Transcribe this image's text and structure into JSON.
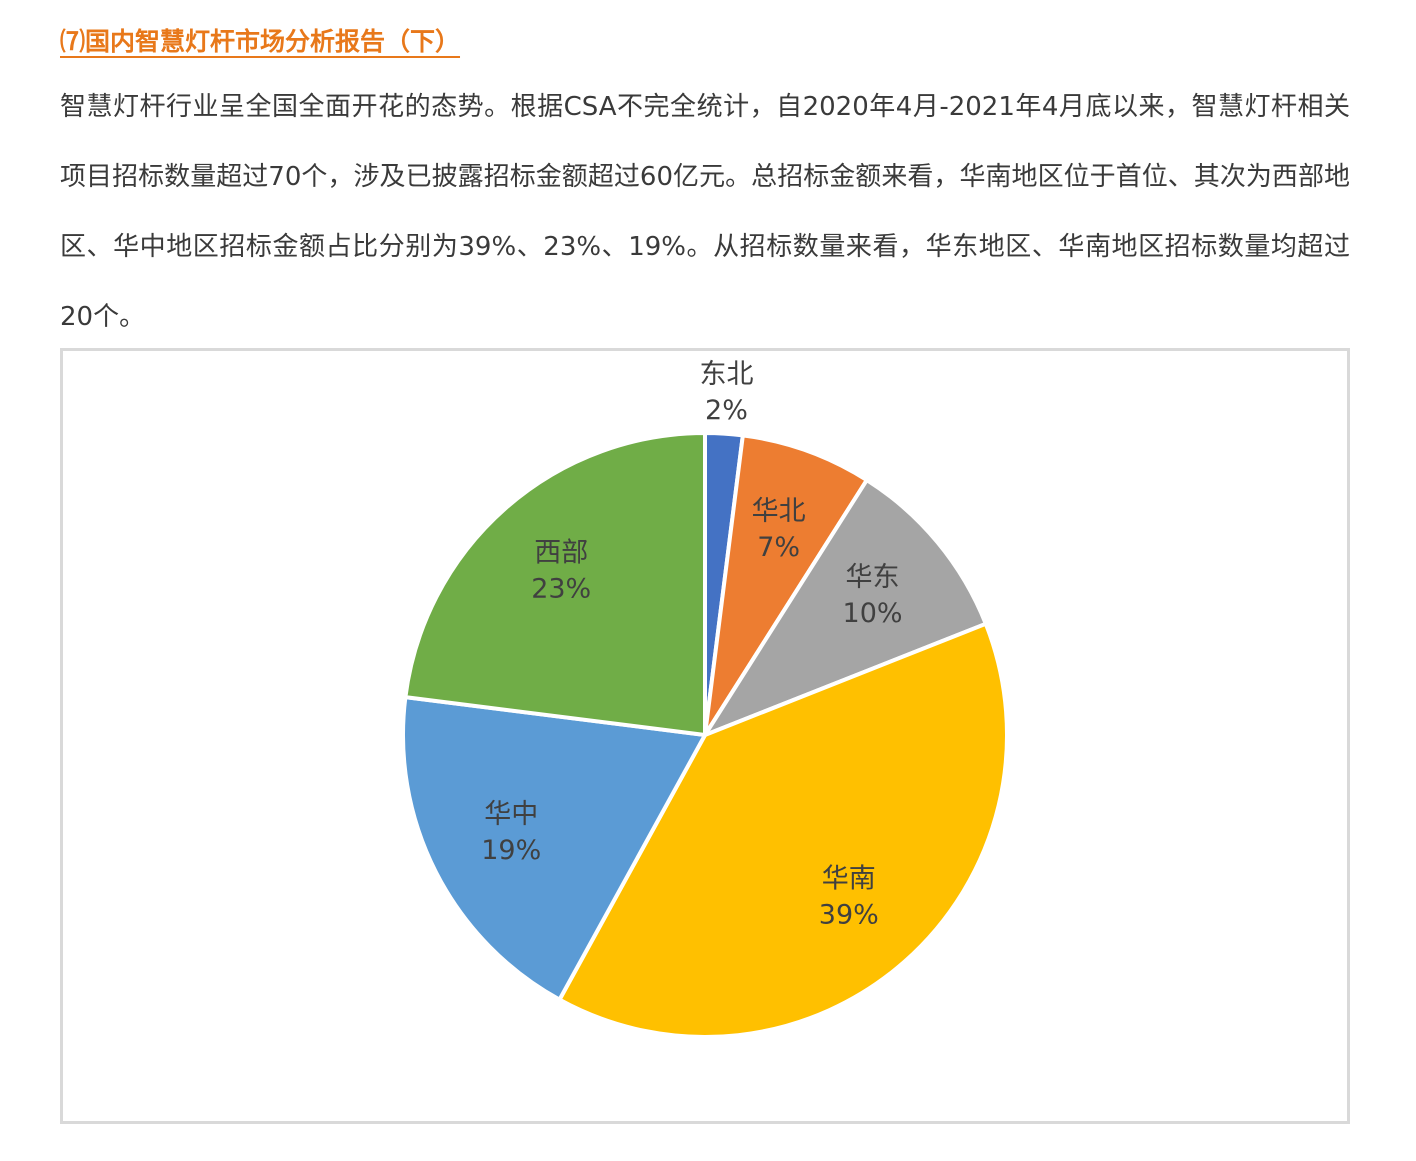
{
  "heading": "⑺国内智慧灯杆市场分析报告（下）",
  "paragraph": "智慧灯杆行业呈全国全面开花的态势。根据CSA不完全统计，自2020年4月-2021年4月底以来，智慧灯杆相关项目招标数量超过70个，涉及已披露招标金额超过60亿元。总招标金额来看，华南地区位于首位、其次为西部地区、华中地区招标金额占比分别为39%、23%、19%。从招标数量来看，华东地区、华南地区招标数量均超过20个。",
  "chart_data": {
    "type": "pie",
    "categories": [
      "东北",
      "华北",
      "华东",
      "华南",
      "华中",
      "西部"
    ],
    "values": [
      2,
      7,
      10,
      39,
      19,
      23
    ],
    "value_labels": [
      "2%",
      "7%",
      "10%",
      "39%",
      "19%",
      "23%"
    ],
    "colors": [
      "#4472c4",
      "#ed7d31",
      "#a5a5a5",
      "#ffc000",
      "#5b9bd5",
      "#70ad47"
    ]
  }
}
